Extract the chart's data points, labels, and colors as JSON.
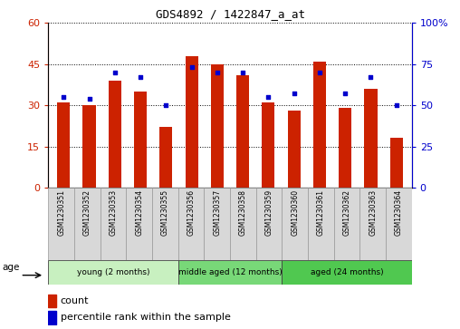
{
  "title": "GDS4892 / 1422847_a_at",
  "samples": [
    "GSM1230351",
    "GSM1230352",
    "GSM1230353",
    "GSM1230354",
    "GSM1230355",
    "GSM1230356",
    "GSM1230357",
    "GSM1230358",
    "GSM1230359",
    "GSM1230360",
    "GSM1230361",
    "GSM1230362",
    "GSM1230363",
    "GSM1230364"
  ],
  "counts": [
    31,
    30,
    39,
    35,
    22,
    48,
    45,
    41,
    31,
    28,
    46,
    29,
    36,
    18
  ],
  "percentiles": [
    55,
    54,
    70,
    67,
    50,
    73,
    70,
    70,
    55,
    57,
    70,
    57,
    67,
    50
  ],
  "ylim_left": [
    0,
    60
  ],
  "ylim_right": [
    0,
    100
  ],
  "yticks_left": [
    0,
    15,
    30,
    45,
    60
  ],
  "yticks_right": [
    0,
    25,
    50,
    75,
    100
  ],
  "groups": [
    {
      "label": "young (2 months)",
      "start": 0,
      "end": 5,
      "color": "#c8f0c0"
    },
    {
      "label": "middle aged (12 months)",
      "start": 5,
      "end": 9,
      "color": "#78d878"
    },
    {
      "label": "aged (24 months)",
      "start": 9,
      "end": 14,
      "color": "#50c850"
    }
  ],
  "bar_color": "#CC2200",
  "dot_color": "#0000CC",
  "bar_width": 0.5,
  "plot_bg_color": "#ffffff",
  "tick_label_color_left": "#CC2200",
  "tick_label_color_right": "#0000CC",
  "age_label": "age",
  "legend_count_label": "count",
  "legend_percentile_label": "percentile rank within the sample",
  "sample_box_color": "#d8d8d8",
  "sample_box_edge_color": "#999999"
}
